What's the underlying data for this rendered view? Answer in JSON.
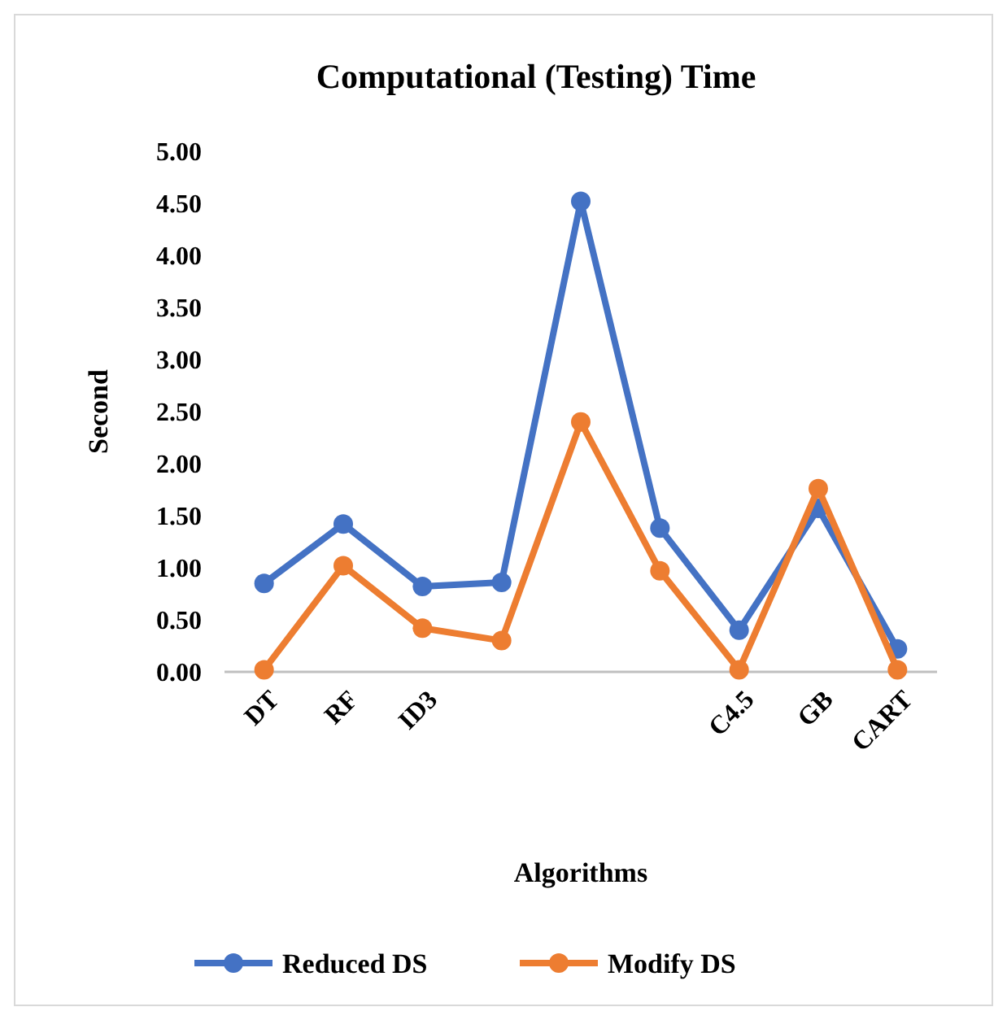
{
  "chart_data": {
    "type": "line",
    "title": "Computational (Testing) Time",
    "xlabel": "Algorithms",
    "ylabel": "Second",
    "categories": [
      "DT",
      "RF",
      "ID3",
      null,
      null,
      null,
      "C4.5",
      "GB",
      "CART"
    ],
    "series": [
      {
        "name": "Reduced DS",
        "color": "#4472c4",
        "values": [
          0.85,
          1.42,
          0.82,
          0.86,
          4.52,
          1.38,
          0.4,
          1.57,
          0.22
        ]
      },
      {
        "name": "Modify DS",
        "color": "#ed7d31",
        "values": [
          0.02,
          1.02,
          0.42,
          0.3,
          2.4,
          0.97,
          0.02,
          1.76,
          0.02
        ]
      }
    ],
    "ylim": [
      0,
      5
    ],
    "yticks": [
      {
        "value": 0,
        "label": "0.00"
      },
      {
        "value": 0.5,
        "label": "0.50"
      },
      {
        "value": 1,
        "label": "1.00"
      },
      {
        "value": 1.5,
        "label": "1.50"
      },
      {
        "value": 2,
        "label": "2.00"
      },
      {
        "value": 2.5,
        "label": "2.50"
      },
      {
        "value": 3,
        "label": "3.00"
      },
      {
        "value": 3.5,
        "label": "3.50"
      },
      {
        "value": 4,
        "label": "4.00"
      },
      {
        "value": 4.5,
        "label": "4.50"
      },
      {
        "value": 5,
        "label": "5.00"
      }
    ],
    "grid": false,
    "legend": "bottom",
    "marker": "circle",
    "line_style": "solid"
  }
}
